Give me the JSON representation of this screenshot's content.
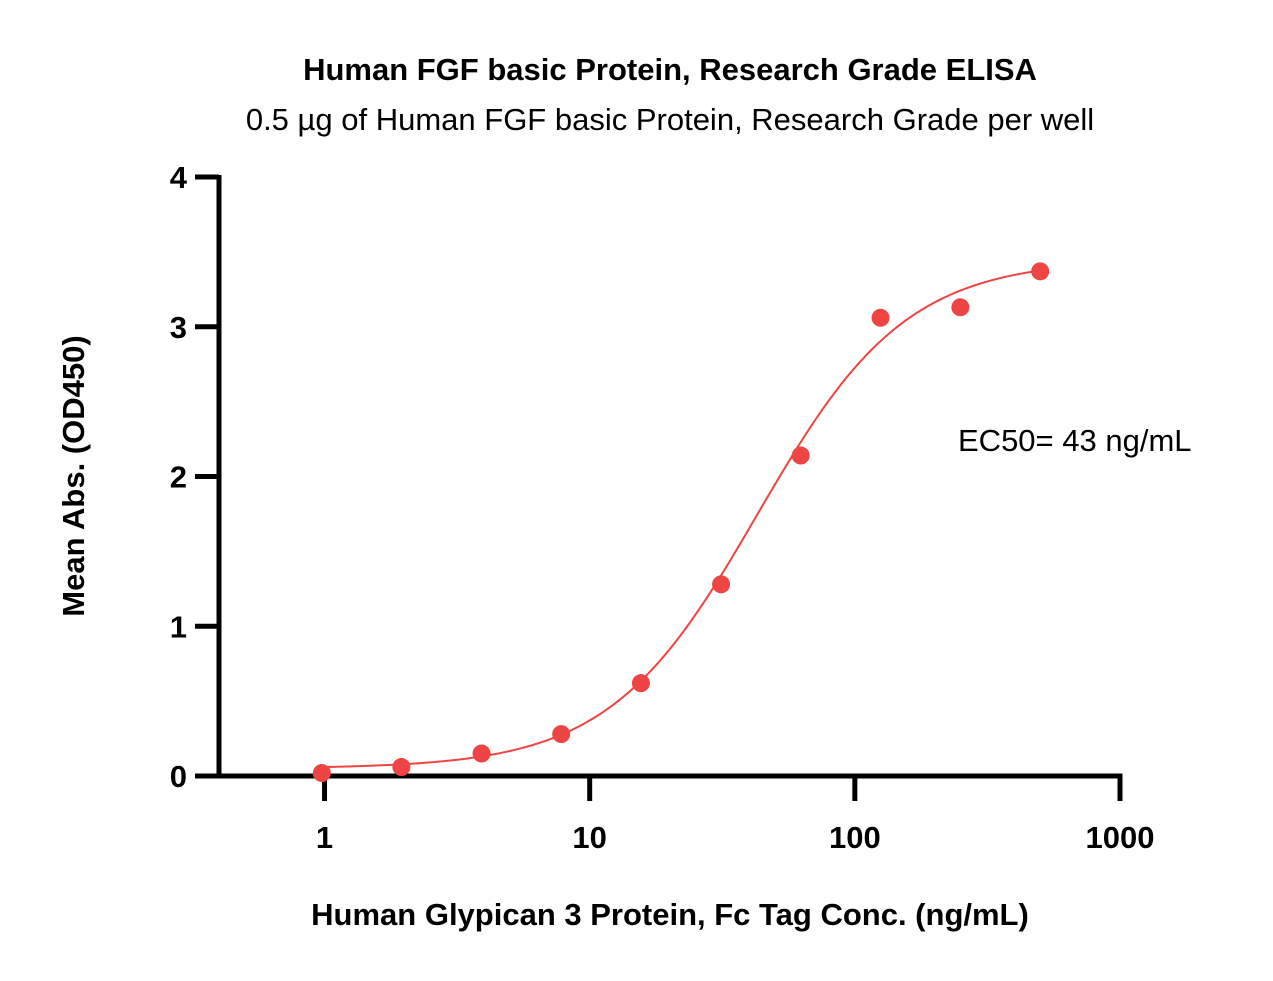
{
  "chart_data": {
    "type": "scatter",
    "title": "Human FGF basic Protein, Research Grade ELISA",
    "subtitle": "0.5 µg of Human FGF basic Protein, Research Grade per well",
    "xlabel": "Human Glypican 3 Protein, Fc Tag Conc. (ng/mL)",
    "ylabel": "Mean Abs. (OD450)",
    "xscale": "log",
    "xlim": [
      0.4,
      1000
    ],
    "ylim": [
      0,
      4
    ],
    "x_ticks": [
      {
        "value": 1,
        "label": "1"
      },
      {
        "value": 10,
        "label": "10"
      },
      {
        "value": 100,
        "label": "100"
      },
      {
        "value": 1000,
        "label": "1000"
      }
    ],
    "y_ticks": [
      {
        "value": 0,
        "label": "0"
      },
      {
        "value": 1,
        "label": "1"
      },
      {
        "value": 2,
        "label": "2"
      },
      {
        "value": 3,
        "label": "3"
      },
      {
        "value": 4,
        "label": "4"
      }
    ],
    "grid": false,
    "color": "#ee4444",
    "series": [
      {
        "x": [
          0.977,
          1.95,
          3.91,
          7.81,
          15.6,
          31.3,
          62.5,
          125,
          250,
          500
        ],
        "y": [
          0.02,
          0.06,
          0.15,
          0.28,
          0.62,
          1.28,
          2.14,
          3.06,
          3.13,
          3.37
        ]
      }
    ],
    "fit": {
      "model": "4PL",
      "bottom": 0.05,
      "top": 3.45,
      "ec50": 43,
      "hill": 1.55,
      "x_range": [
        0.977,
        500
      ]
    },
    "annotations": [
      {
        "text": "EC50= 43 ng/mL"
      }
    ]
  }
}
